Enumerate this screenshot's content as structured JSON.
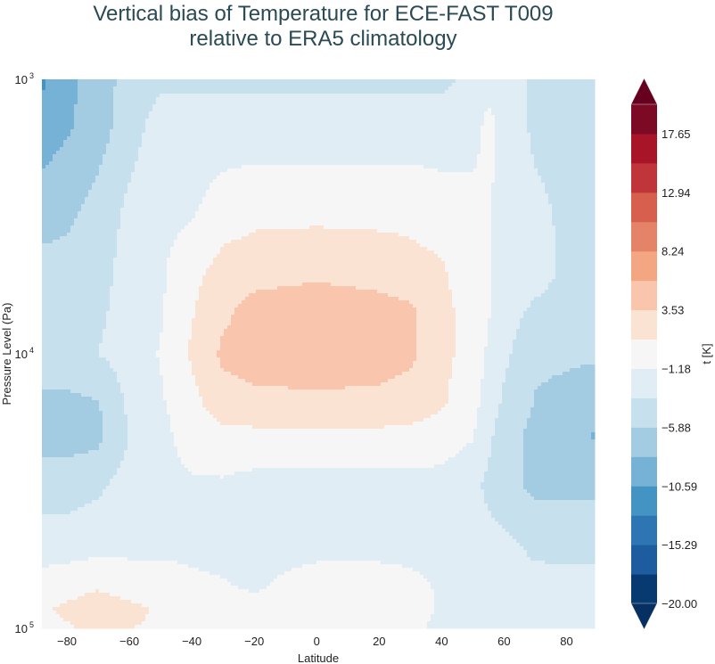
{
  "chart_data": {
    "type": "heatmap",
    "subtype": "filled-contour",
    "title": [
      "Vertical bias of Temperature for ECE-FAST T009",
      "relative to ERA5 climatology"
    ],
    "xlabel": "Latitude",
    "ylabel": "Pressure Level (Pa)",
    "xlim": [
      -88,
      89
    ],
    "ylim": [
      1000,
      100000
    ],
    "yscale": "log",
    "yinverted": false,
    "xticks": [
      "−80",
      "−60",
      "−40",
      "−20",
      "0",
      "20",
      "40",
      "60",
      "80"
    ],
    "xtick_values": [
      -80,
      -60,
      -40,
      -20,
      0,
      20,
      40,
      60,
      80
    ],
    "yticks": [
      {
        "base": "10",
        "exp": "3",
        "value": 1000
      },
      {
        "base": "10",
        "exp": "4",
        "value": 10000
      },
      {
        "base": "10",
        "exp": "5",
        "value": 100000
      }
    ],
    "latitudes": [
      -88,
      -80,
      -70,
      -60,
      -50,
      -40,
      -30,
      -20,
      0,
      20,
      30,
      40,
      50,
      55,
      60,
      70,
      80,
      89
    ],
    "pressure_levels": [
      1000,
      1500,
      3000,
      5000,
      7000,
      10000,
      15000,
      20000,
      30000,
      50000,
      70000,
      85000,
      100000
    ],
    "values": [
      [
        -11,
        -9,
        -7,
        -5,
        -4,
        -4,
        -4,
        -4,
        -4,
        -4,
        -4,
        -4,
        -3,
        -2,
        -2,
        -4,
        -4,
        -4
      ],
      [
        -9.5,
        -8.5,
        -7,
        -4.5,
        -2.5,
        -2.5,
        -2.5,
        -2.5,
        -2.5,
        -2.5,
        -2.5,
        -2.5,
        -2,
        -0.5,
        -2,
        -4,
        -4.5,
        -4.5
      ],
      [
        -7,
        -6.5,
        -5,
        -3,
        -2,
        -1.5,
        0,
        0.5,
        0.5,
        0.5,
        0.5,
        0,
        -0.5,
        -1,
        -2,
        -3,
        -4,
        -4.5
      ],
      [
        -5,
        -5,
        -4.5,
        -2.5,
        -1.5,
        0.5,
        2,
        2.5,
        3,
        2.5,
        2,
        1.5,
        -0.5,
        -1,
        -2,
        -2.5,
        -4,
        -5
      ],
      [
        -4.5,
        -4.5,
        -4,
        -2.5,
        -1.5,
        1,
        3,
        4.5,
        5,
        4.5,
        4,
        2,
        0,
        -1,
        -2.5,
        -4,
        -4.5,
        -5
      ],
      [
        -4,
        -4,
        -3.5,
        -2.5,
        -1,
        1.5,
        4,
        4.5,
        5,
        4.5,
        4,
        2,
        0,
        -1.5,
        -3,
        -5.5,
        -5.5,
        -5.5
      ],
      [
        -6.5,
        -6.5,
        -6,
        -3,
        -1.5,
        0.5,
        2.5,
        3,
        3,
        3,
        2.5,
        1.5,
        -0.5,
        -2,
        -4,
        -6,
        -6.5,
        -7.5
      ],
      [
        -7,
        -7,
        -6.5,
        -3.5,
        -2,
        0,
        0.5,
        0.5,
        0.5,
        0.5,
        0.5,
        0,
        -1,
        -3,
        -5,
        -6.5,
        -7,
        -8.5
      ],
      [
        -4.5,
        -4.5,
        -4,
        -2.5,
        -2,
        -1.5,
        -1.5,
        -2,
        -2,
        -2,
        -2,
        -2,
        -3,
        -4,
        -5,
        -6.5,
        -6.5,
        -6.5
      ],
      [
        -2.5,
        -2.5,
        -2,
        -2,
        -2,
        -2,
        -2,
        -2,
        -2,
        -2,
        -2,
        -2,
        -2.5,
        -2.8,
        -3,
        -4,
        -4,
        -4
      ],
      [
        0,
        0.5,
        1,
        0.5,
        0.5,
        -0.5,
        -1,
        -1.5,
        0,
        0,
        -0.5,
        -1.5,
        -2,
        -2.3,
        -2.5,
        -2.8,
        -3,
        -3
      ],
      [
        1,
        1.5,
        2,
        1.5,
        1,
        0,
        -0.3,
        -0.5,
        0.5,
        0.5,
        0,
        -1.5,
        -1.8,
        -2,
        -2,
        -2.5,
        -3,
        -3
      ],
      [
        0.5,
        1,
        1.5,
        1.2,
        1,
        0.7,
        0.5,
        0.3,
        0,
        -0.2,
        -0.5,
        -2,
        -2,
        -2,
        -2,
        -2.5,
        -3,
        -3.5
      ]
    ],
    "levels": [
      -20,
      -17.65,
      -15.29,
      -12.94,
      -10.59,
      -8.24,
      -5.88,
      -3.53,
      -1.18,
      1.18,
      3.53,
      5.88,
      8.24,
      10.59,
      12.94,
      15.29,
      17.65,
      20
    ],
    "colors": [
      "#073a70",
      "#1c5c9f",
      "#2d76b3",
      "#4393c3",
      "#75b2d5",
      "#a3cce2",
      "#c6e0ed",
      "#e1edf4",
      "#f6f6f6",
      "#fbe3d4",
      "#f9c6ad",
      "#f4a582",
      "#e58368",
      "#d6604d",
      "#c0353a",
      "#a81529",
      "#7d0a25"
    ],
    "extend_under_color": "#053061",
    "extend_over_color": "#67001f",
    "colorbar": {
      "label": "t [K]",
      "ticks": [
        "−20.00",
        "−15.29",
        "−10.59",
        "−5.88",
        "−1.18",
        "3.53",
        "8.24",
        "12.94",
        "17.65"
      ],
      "tick_values": [
        -20,
        -15.29,
        -10.59,
        -5.88,
        -1.18,
        3.53,
        8.24,
        12.94,
        17.65
      ],
      "extend": "both"
    }
  }
}
